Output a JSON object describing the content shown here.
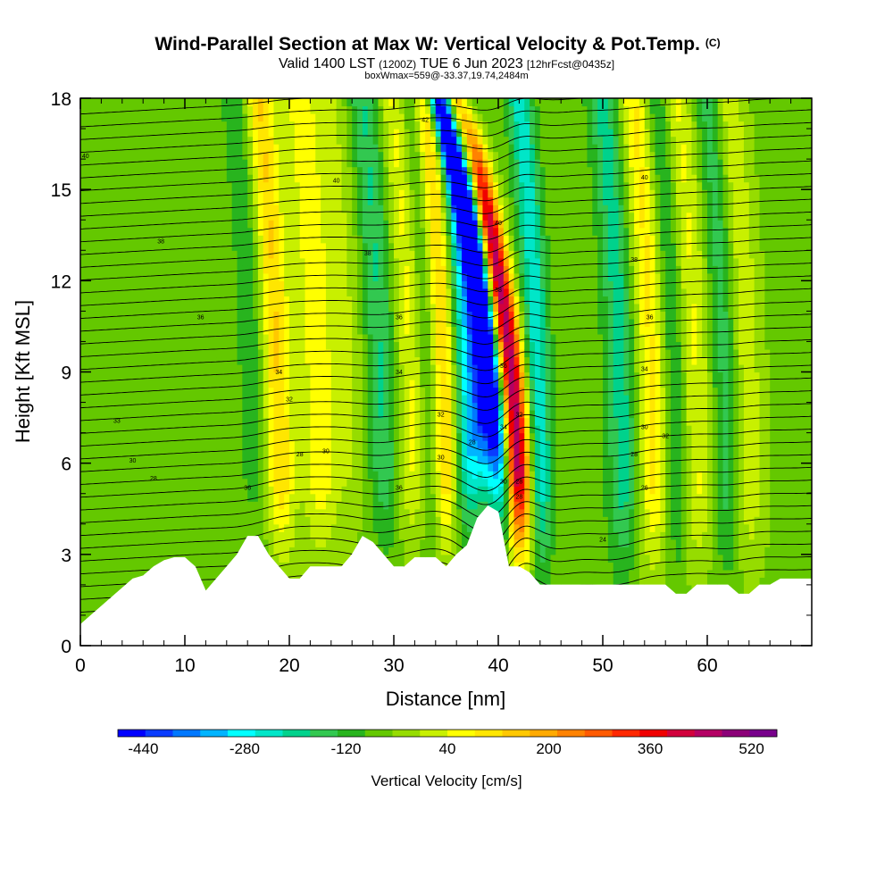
{
  "title": "Wind-Parallel Section at Max W: Vertical Velocity & Pot.Temp.",
  "title_mark": "(C)",
  "subtitle_valid": "Valid 1400 LST",
  "subtitle_utc": "(1200Z)",
  "subtitle_date": "TUE 6 Jun 2023",
  "subtitle_fcst": "[12hrFcst@0435z]",
  "subtitle2": "boxWmax=559@-33.37,19.74,2484m",
  "chart_data": {
    "type": "heatmap",
    "xlabel": "Distance [nm]",
    "ylabel": "Height [Kft MSL]",
    "xlim": [
      0,
      70
    ],
    "ylim": [
      0,
      18
    ],
    "x_ticks": [
      "0",
      "10",
      "20",
      "30",
      "40",
      "50",
      "60"
    ],
    "y_ticks": [
      "0",
      "3",
      "6",
      "9",
      "12",
      "15",
      "18"
    ],
    "colorbar": {
      "label": "Vertical Velocity [cm/s]",
      "range": [
        -480,
        560
      ],
      "tick_labels": [
        "-440",
        "-280",
        "-120",
        "40",
        "200",
        "360",
        "520"
      ],
      "colors": [
        "#0000ff",
        "#0a3cff",
        "#0078ff",
        "#00b4ff",
        "#00ffff",
        "#00e6c8",
        "#00d28c",
        "#32c850",
        "#28b41e",
        "#64c800",
        "#96dc00",
        "#c8f000",
        "#ffff00",
        "#ffe600",
        "#ffc800",
        "#ffaa00",
        "#ff8200",
        "#ff5a00",
        "#ff2800",
        "#f00000",
        "#d2003c",
        "#b40064",
        "#8c0078",
        "#78008c"
      ]
    },
    "terrain_kft": [
      [
        0,
        0.7
      ],
      [
        1,
        1.0
      ],
      [
        2,
        1.3
      ],
      [
        3,
        1.6
      ],
      [
        4,
        1.9
      ],
      [
        5,
        2.2
      ],
      [
        6,
        2.3
      ],
      [
        7,
        2.6
      ],
      [
        8,
        2.8
      ],
      [
        9,
        2.9
      ],
      [
        10,
        2.9
      ],
      [
        11,
        2.6
      ],
      [
        12,
        1.8
      ],
      [
        13,
        2.2
      ],
      [
        14,
        2.6
      ],
      [
        15,
        3.0
      ],
      [
        16,
        3.6
      ],
      [
        17,
        3.6
      ],
      [
        18,
        3.0
      ],
      [
        19,
        2.6
      ],
      [
        20,
        2.2
      ],
      [
        21,
        2.2
      ],
      [
        22,
        2.6
      ],
      [
        23,
        2.6
      ],
      [
        24,
        2.6
      ],
      [
        25,
        2.6
      ],
      [
        26,
        3.0
      ],
      [
        27,
        3.6
      ],
      [
        28,
        3.4
      ],
      [
        29,
        3.0
      ],
      [
        30,
        2.6
      ],
      [
        31,
        2.6
      ],
      [
        32,
        2.9
      ],
      [
        33,
        2.9
      ],
      [
        34,
        2.9
      ],
      [
        35,
        2.6
      ],
      [
        36,
        3.0
      ],
      [
        37,
        3.3
      ],
      [
        38,
        4.2
      ],
      [
        39,
        4.6
      ],
      [
        40,
        4.4
      ],
      [
        41,
        2.6
      ],
      [
        42,
        2.6
      ],
      [
        43,
        2.4
      ],
      [
        44,
        2.0
      ],
      [
        45,
        2.0
      ],
      [
        46,
        2.0
      ],
      [
        47,
        2.0
      ],
      [
        48,
        2.0
      ],
      [
        49,
        2.0
      ],
      [
        50,
        2.0
      ],
      [
        51,
        2.0
      ],
      [
        52,
        2.0
      ],
      [
        53,
        2.0
      ],
      [
        54,
        2.0
      ],
      [
        55,
        2.0
      ],
      [
        56,
        2.0
      ],
      [
        57,
        1.7
      ],
      [
        58,
        1.7
      ],
      [
        59,
        2.0
      ],
      [
        60,
        2.0
      ],
      [
        61,
        2.0
      ],
      [
        62,
        2.0
      ],
      [
        63,
        1.7
      ],
      [
        64,
        1.7
      ],
      [
        65,
        2.0
      ],
      [
        66,
        2.0
      ],
      [
        67,
        2.2
      ],
      [
        68,
        2.2
      ],
      [
        69,
        2.2
      ],
      [
        70,
        2.2
      ]
    ],
    "updraft_cores": [
      {
        "x": 42,
        "w": 1.2,
        "value": 520
      },
      {
        "x": 35,
        "w": 1.3,
        "value": 220
      },
      {
        "x": 32,
        "w": 1.4,
        "value": 120
      },
      {
        "x": 23,
        "w": 1.6,
        "value": 140
      },
      {
        "x": 19,
        "w": 1.5,
        "value": 200
      },
      {
        "x": 55,
        "w": 1.6,
        "value": 160
      },
      {
        "x": 59,
        "w": 1.5,
        "value": 110
      },
      {
        "x": 64,
        "w": 1.5,
        "value": 90
      },
      {
        "x": 26,
        "w": 1.5,
        "value": 60
      }
    ],
    "downdraft_cores": [
      {
        "x": 40,
        "w": 1.0,
        "value": -440
      },
      {
        "x": 38.5,
        "w": 1.2,
        "value": -260
      },
      {
        "x": 37,
        "w": 1.3,
        "value": -180
      },
      {
        "x": 44,
        "w": 1.2,
        "value": -190
      },
      {
        "x": 33.5,
        "w": 1.2,
        "value": -100
      },
      {
        "x": 29,
        "w": 1.4,
        "value": -120
      },
      {
        "x": 17,
        "w": 1.5,
        "value": -80
      },
      {
        "x": 52,
        "w": 1.5,
        "value": -140
      },
      {
        "x": 57,
        "w": 1.3,
        "value": -110
      },
      {
        "x": 62,
        "w": 1.3,
        "value": -100
      }
    ],
    "theta_contour_labels": [
      {
        "x": 0.5,
        "y": 16.1,
        "text": "40"
      },
      {
        "x": 7.7,
        "y": 13.3,
        "text": "38"
      },
      {
        "x": 11.5,
        "y": 10.8,
        "text": "36"
      },
      {
        "x": 3.5,
        "y": 7.4,
        "text": "33"
      },
      {
        "x": 5,
        "y": 6.1,
        "text": "30"
      },
      {
        "x": 7,
        "y": 5.5,
        "text": "28"
      },
      {
        "x": 16,
        "y": 5.2,
        "text": "36"
      },
      {
        "x": 19,
        "y": 9.0,
        "text": "34"
      },
      {
        "x": 20,
        "y": 8.1,
        "text": "32"
      },
      {
        "x": 21,
        "y": 6.3,
        "text": "28"
      },
      {
        "x": 23.5,
        "y": 6.4,
        "text": "30"
      },
      {
        "x": 24.5,
        "y": 15.3,
        "text": "40"
      },
      {
        "x": 27.5,
        "y": 12.9,
        "text": "38"
      },
      {
        "x": 30.5,
        "y": 10.8,
        "text": "36"
      },
      {
        "x": 30.5,
        "y": 9.0,
        "text": "34"
      },
      {
        "x": 30.5,
        "y": 5.2,
        "text": "36"
      },
      {
        "x": 33,
        "y": 17.3,
        "text": "42"
      },
      {
        "x": 34.5,
        "y": 7.6,
        "text": "32"
      },
      {
        "x": 34.5,
        "y": 6.2,
        "text": "30"
      },
      {
        "x": 37.5,
        "y": 6.7,
        "text": "28"
      },
      {
        "x": 40,
        "y": 13.9,
        "text": "40"
      },
      {
        "x": 40,
        "y": 11.7,
        "text": "38"
      },
      {
        "x": 40.5,
        "y": 9.2,
        "text": "36"
      },
      {
        "x": 40.5,
        "y": 7.2,
        "text": "34"
      },
      {
        "x": 42,
        "y": 7.6,
        "text": "32"
      },
      {
        "x": 40.5,
        "y": 5.4,
        "text": "30"
      },
      {
        "x": 42,
        "y": 5.4,
        "text": "28"
      },
      {
        "x": 42,
        "y": 4.9,
        "text": "28"
      },
      {
        "x": 54,
        "y": 15.4,
        "text": "40"
      },
      {
        "x": 53,
        "y": 12.7,
        "text": "38"
      },
      {
        "x": 54.5,
        "y": 10.8,
        "text": "36"
      },
      {
        "x": 54,
        "y": 9.1,
        "text": "34"
      },
      {
        "x": 54,
        "y": 7.2,
        "text": "30"
      },
      {
        "x": 56,
        "y": 6.9,
        "text": "32"
      },
      {
        "x": 53,
        "y": 6.3,
        "text": "28"
      },
      {
        "x": 54,
        "y": 5.2,
        "text": "26"
      },
      {
        "x": 50,
        "y": 3.5,
        "text": "24"
      }
    ]
  }
}
